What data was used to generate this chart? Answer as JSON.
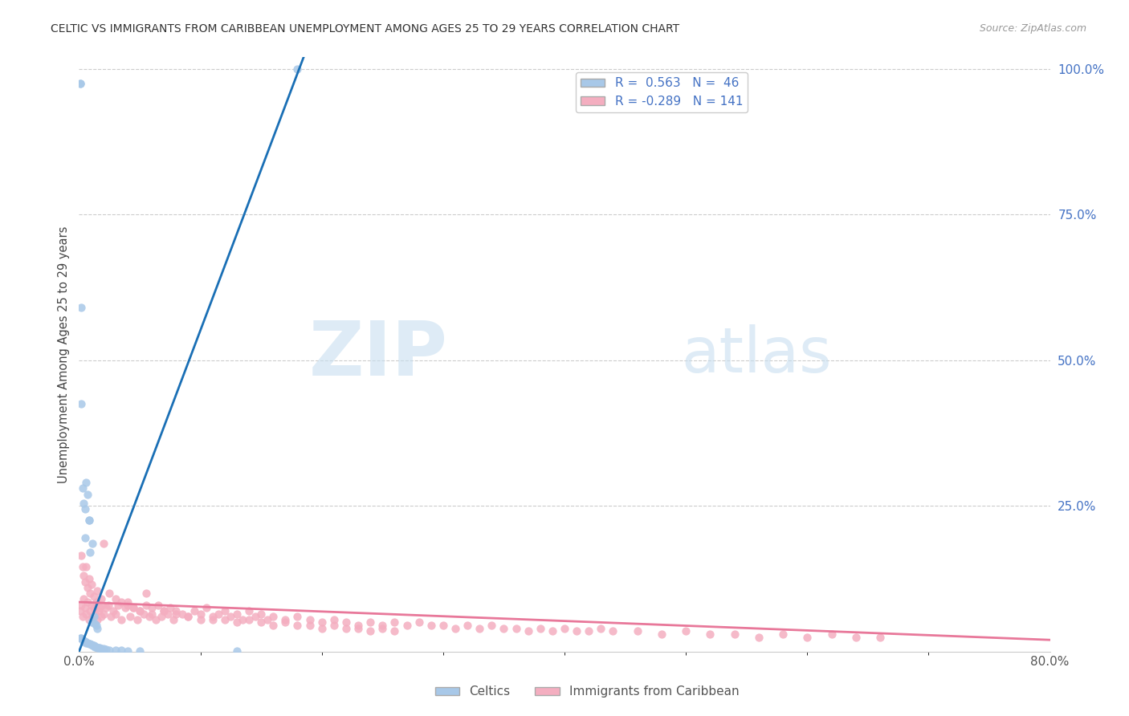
{
  "title": "CELTIC VS IMMIGRANTS FROM CARIBBEAN UNEMPLOYMENT AMONG AGES 25 TO 29 YEARS CORRELATION CHART",
  "source": "Source: ZipAtlas.com",
  "ylabel": "Unemployment Among Ages 25 to 29 years",
  "xlim": [
    0,
    0.8
  ],
  "ylim": [
    0,
    1.02
  ],
  "celtics_color": "#a8c8e8",
  "caribbean_color": "#f4aec0",
  "celtics_line_color": "#1a6fb5",
  "caribbean_line_color": "#e8789a",
  "background_color": "#ffffff",
  "grid_color": "#cccccc",
  "celtics_x": [
    0.001,
    0.001,
    0.002,
    0.002,
    0.003,
    0.004,
    0.005,
    0.005,
    0.006,
    0.007,
    0.008,
    0.008,
    0.009,
    0.01,
    0.011,
    0.012,
    0.013,
    0.014,
    0.015,
    0.001,
    0.002,
    0.003,
    0.004,
    0.005,
    0.006,
    0.007,
    0.008,
    0.009,
    0.01,
    0.011,
    0.012,
    0.013,
    0.014,
    0.015,
    0.016,
    0.017,
    0.018,
    0.02,
    0.022,
    0.025,
    0.03,
    0.035,
    0.04,
    0.05,
    0.13,
    0.18
  ],
  "celtics_y": [
    0.975,
    0.975,
    0.59,
    0.425,
    0.28,
    0.255,
    0.245,
    0.195,
    0.29,
    0.27,
    0.225,
    0.225,
    0.17,
    0.05,
    0.185,
    0.06,
    0.048,
    0.045,
    0.04,
    0.023,
    0.023,
    0.02,
    0.018,
    0.018,
    0.015,
    0.015,
    0.013,
    0.013,
    0.012,
    0.01,
    0.01,
    0.008,
    0.008,
    0.007,
    0.007,
    0.006,
    0.005,
    0.005,
    0.004,
    0.003,
    0.002,
    0.002,
    0.001,
    0.001,
    0.001,
    1.0
  ],
  "celtics_trendline_x": [
    0.0,
    0.185
  ],
  "celtics_trendline_y": [
    0.0,
    1.02
  ],
  "caribbean_trendline_x": [
    0.0,
    0.8
  ],
  "caribbean_trendline_y": [
    0.085,
    0.02
  ],
  "caribbean_x": [
    0.001,
    0.002,
    0.003,
    0.004,
    0.005,
    0.006,
    0.007,
    0.008,
    0.009,
    0.01,
    0.011,
    0.012,
    0.013,
    0.014,
    0.015,
    0.016,
    0.017,
    0.018,
    0.019,
    0.02,
    0.022,
    0.024,
    0.026,
    0.028,
    0.03,
    0.032,
    0.035,
    0.038,
    0.04,
    0.042,
    0.045,
    0.048,
    0.05,
    0.053,
    0.055,
    0.058,
    0.06,
    0.063,
    0.065,
    0.068,
    0.07,
    0.073,
    0.075,
    0.078,
    0.08,
    0.085,
    0.09,
    0.095,
    0.1,
    0.105,
    0.11,
    0.115,
    0.12,
    0.125,
    0.13,
    0.135,
    0.14,
    0.145,
    0.15,
    0.155,
    0.16,
    0.17,
    0.18,
    0.19,
    0.2,
    0.21,
    0.22,
    0.23,
    0.24,
    0.25,
    0.26,
    0.27,
    0.28,
    0.29,
    0.3,
    0.31,
    0.32,
    0.33,
    0.34,
    0.35,
    0.36,
    0.37,
    0.38,
    0.39,
    0.4,
    0.41,
    0.42,
    0.43,
    0.44,
    0.46,
    0.48,
    0.5,
    0.52,
    0.54,
    0.56,
    0.58,
    0.6,
    0.62,
    0.64,
    0.66,
    0.002,
    0.003,
    0.004,
    0.005,
    0.006,
    0.007,
    0.008,
    0.009,
    0.01,
    0.012,
    0.015,
    0.018,
    0.02,
    0.025,
    0.03,
    0.035,
    0.04,
    0.045,
    0.05,
    0.055,
    0.06,
    0.07,
    0.08,
    0.09,
    0.1,
    0.11,
    0.12,
    0.13,
    0.14,
    0.15,
    0.16,
    0.17,
    0.18,
    0.19,
    0.2,
    0.21,
    0.22,
    0.23,
    0.24,
    0.25,
    0.26
  ],
  "caribbean_y": [
    0.07,
    0.08,
    0.06,
    0.09,
    0.075,
    0.065,
    0.085,
    0.055,
    0.07,
    0.08,
    0.06,
    0.075,
    0.065,
    0.085,
    0.055,
    0.07,
    0.075,
    0.06,
    0.08,
    0.065,
    0.075,
    0.08,
    0.06,
    0.07,
    0.065,
    0.08,
    0.055,
    0.075,
    0.085,
    0.06,
    0.075,
    0.055,
    0.07,
    0.065,
    0.08,
    0.06,
    0.075,
    0.055,
    0.08,
    0.06,
    0.07,
    0.065,
    0.075,
    0.055,
    0.07,
    0.065,
    0.06,
    0.07,
    0.065,
    0.075,
    0.055,
    0.065,
    0.07,
    0.06,
    0.065,
    0.055,
    0.07,
    0.06,
    0.065,
    0.055,
    0.06,
    0.055,
    0.06,
    0.055,
    0.05,
    0.055,
    0.05,
    0.045,
    0.05,
    0.045,
    0.05,
    0.045,
    0.05,
    0.045,
    0.045,
    0.04,
    0.045,
    0.04,
    0.045,
    0.04,
    0.04,
    0.035,
    0.04,
    0.035,
    0.04,
    0.035,
    0.035,
    0.04,
    0.035,
    0.035,
    0.03,
    0.035,
    0.03,
    0.03,
    0.025,
    0.03,
    0.025,
    0.03,
    0.025,
    0.025,
    0.165,
    0.145,
    0.13,
    0.12,
    0.145,
    0.11,
    0.125,
    0.1,
    0.115,
    0.095,
    0.105,
    0.09,
    0.185,
    0.1,
    0.09,
    0.085,
    0.08,
    0.075,
    0.07,
    0.1,
    0.065,
    0.07,
    0.065,
    0.06,
    0.055,
    0.06,
    0.055,
    0.05,
    0.055,
    0.05,
    0.045,
    0.05,
    0.045,
    0.045,
    0.04,
    0.045,
    0.04,
    0.04,
    0.035,
    0.04,
    0.035
  ]
}
